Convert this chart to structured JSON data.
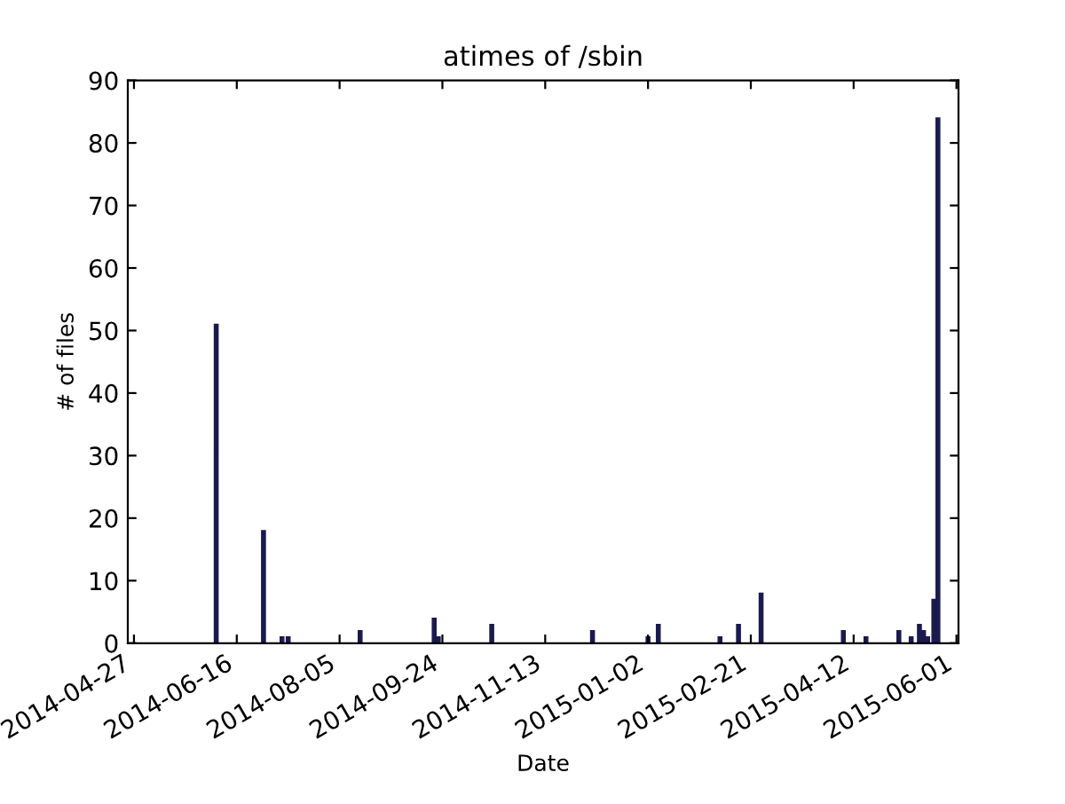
{
  "chart_data": {
    "type": "bar",
    "title": "atimes of /sbin",
    "xlabel": "Date",
    "ylabel": "# of files",
    "x": [
      "2014-06-06",
      "2014-06-29",
      "2014-07-08",
      "2014-07-11",
      "2014-08-15",
      "2014-09-20",
      "2014-09-22",
      "2014-10-18",
      "2014-12-06",
      "2015-01-02",
      "2015-01-07",
      "2015-02-06",
      "2015-02-15",
      "2015-02-26",
      "2015-04-07",
      "2015-04-18",
      "2015-05-04",
      "2015-05-10",
      "2015-05-14",
      "2015-05-16",
      "2015-05-18",
      "2015-05-21",
      "2015-05-23"
    ],
    "values": [
      51,
      18,
      1,
      1,
      2,
      4,
      1,
      3,
      2,
      1,
      3,
      1,
      3,
      8,
      2,
      1,
      2,
      1,
      3,
      2,
      1,
      7,
      84
    ],
    "color": "#1a1a4e",
    "xlim": [
      "2014-04-24",
      "2015-06-02"
    ],
    "xticks": [
      "2014-04-27",
      "2014-06-16",
      "2014-08-05",
      "2014-09-24",
      "2014-11-13",
      "2015-01-02",
      "2015-02-21",
      "2015-04-12",
      "2015-06-01"
    ],
    "ylim": [
      0,
      90
    ],
    "yticks": [
      0,
      10,
      20,
      30,
      40,
      50,
      60,
      70,
      80,
      90
    ],
    "grid": false
  }
}
